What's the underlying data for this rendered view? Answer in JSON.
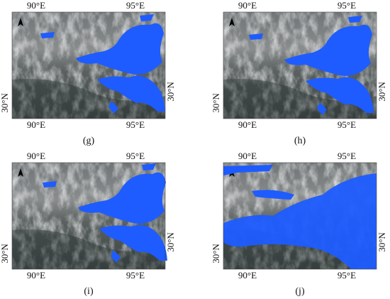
{
  "panels": [
    {
      "caption": "(g)",
      "top_ticks": [
        "90°E",
        "95°E"
      ],
      "bottom_ticks": [
        "90°E",
        "95°E"
      ],
      "left_tick": "30°N",
      "right_tick": "30°N"
    },
    {
      "caption": "(h)",
      "top_ticks": [
        "90°E",
        "95°E"
      ],
      "bottom_ticks": [
        "90°E",
        "95°E"
      ],
      "left_tick": "30°N",
      "right_tick": "30°N"
    },
    {
      "caption": "(i)",
      "top_ticks": [
        "90°E",
        "95°E"
      ],
      "bottom_ticks": [
        "90°E",
        "95°E"
      ],
      "left_tick": "30°N",
      "right_tick": "30°N"
    },
    {
      "caption": "(j)",
      "top_ticks": [
        "90°E",
        "95°E"
      ],
      "bottom_ticks": [
        "90°E",
        "95°E"
      ],
      "left_tick": "30°N",
      "right_tick": "30°N"
    }
  ]
}
